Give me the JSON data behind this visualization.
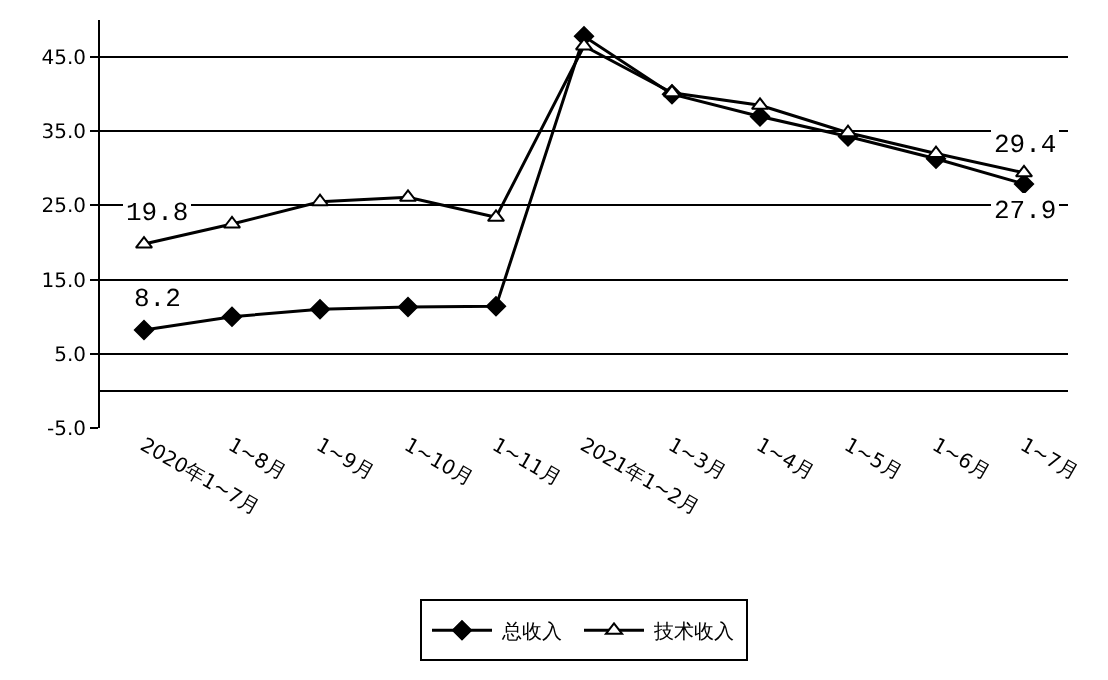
{
  "chart_data": {
    "type": "line",
    "categories": [
      "2020年1~7月",
      "1~8月",
      "1~9月",
      "1~10月",
      "1~11月",
      "2021年1~2月",
      "1~3月",
      "1~4月",
      "1~5月",
      "1~6月",
      "1~7月"
    ],
    "series": [
      {
        "name": "总收入",
        "color": "#000000",
        "marker": "diamond",
        "values": [
          8.2,
          10.0,
          11.0,
          11.3,
          11.4,
          47.8,
          40.0,
          37.0,
          34.3,
          31.3,
          27.9
        ],
        "value_labels": [
          "8.2",
          null,
          null,
          null,
          null,
          null,
          null,
          null,
          null,
          null,
          "27.9"
        ]
      },
      {
        "name": "技术收入",
        "color": "#000000",
        "marker": "triangle",
        "values": [
          19.8,
          22.5,
          25.5,
          26.1,
          23.4,
          46.5,
          40.2,
          38.5,
          34.8,
          32.0,
          29.4
        ],
        "value_labels": [
          "19.8",
          null,
          null,
          null,
          null,
          null,
          null,
          null,
          null,
          null,
          "29.4"
        ]
      }
    ],
    "ylim": [
      -5,
      50
    ],
    "yticks": [
      {
        "value": -5,
        "label": "-5.0"
      },
      {
        "value": 5,
        "label": "5.0"
      },
      {
        "value": 15,
        "label": "15.0"
      },
      {
        "value": 25,
        "label": "25.0"
      },
      {
        "value": 35,
        "label": "35.0"
      },
      {
        "value": 45,
        "label": "45.0"
      }
    ],
    "grid": "y",
    "legend": "bottom",
    "line_style": "solid"
  }
}
